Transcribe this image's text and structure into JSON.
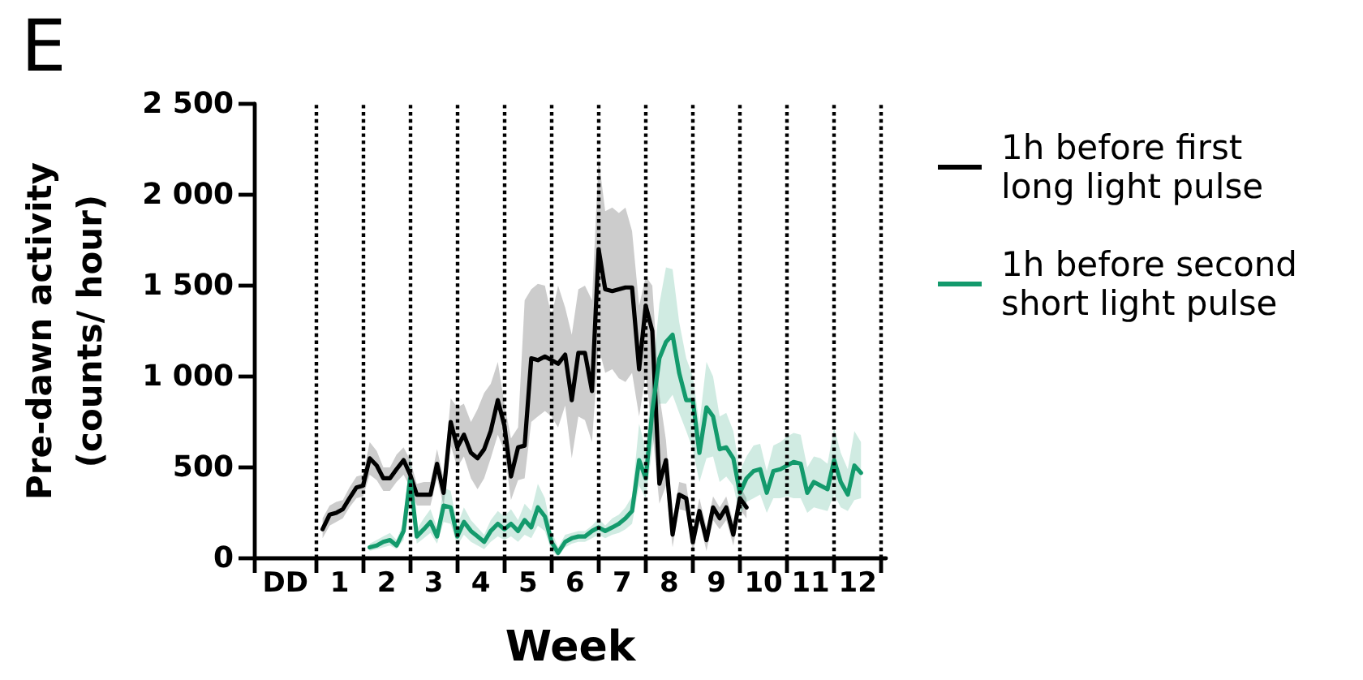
{
  "chart_data": {
    "type": "line",
    "title": "E",
    "xlabel": "Week",
    "ylabel": "Pre-dawn activity\n(counts/ hour)",
    "xlim": [
      -0.8,
      12.6
    ],
    "xticks": [
      {
        "value": -0.8,
        "label": null
      },
      {
        "value": -0.15,
        "label": "DD"
      },
      {
        "value": 0.5,
        "label": null
      },
      1,
      {
        "value": 1.5,
        "label": null
      },
      2,
      {
        "value": 2.5,
        "label": null
      },
      3,
      {
        "value": 3.5,
        "label": null
      },
      4,
      {
        "value": 4.5,
        "label": null
      },
      5,
      {
        "value": 5.5,
        "label": null
      },
      6,
      {
        "value": 6.5,
        "label": null
      },
      7,
      {
        "value": 7.5,
        "label": null
      },
      8,
      {
        "value": 8.5,
        "label": null
      },
      9,
      {
        "value": 9.5,
        "label": null
      },
      10,
      {
        "value": 10.5,
        "label": null
      },
      11,
      {
        "value": 11.5,
        "label": null
      },
      12,
      {
        "value": 12.5,
        "label": null
      }
    ],
    "ylim": [
      0,
      2500
    ],
    "yticks": [
      0,
      500,
      {
        "value": 1000,
        "label": "1 000"
      },
      {
        "value": 1500,
        "label": "1 500"
      },
      {
        "value": 2000,
        "label": "2 000"
      },
      {
        "value": 2500,
        "label": "2 500"
      }
    ],
    "legend": "top right",
    "marker": "none",
    "line_style": "solid",
    "ref_lines": [
      {
        "axis": "x",
        "value": 0.5,
        "color": "#000000",
        "line_style": "dotted"
      },
      {
        "axis": "x",
        "value": 1.5,
        "color": "#000000",
        "line_style": "dotted"
      },
      {
        "axis": "x",
        "value": 2.5,
        "color": "#000000",
        "line_style": "dotted"
      },
      {
        "axis": "x",
        "value": 3.5,
        "color": "#000000",
        "line_style": "dotted"
      },
      {
        "axis": "x",
        "value": 4.5,
        "color": "#000000",
        "line_style": "dotted"
      },
      {
        "axis": "x",
        "value": 5.5,
        "color": "#000000",
        "line_style": "dotted"
      },
      {
        "axis": "x",
        "value": 6.5,
        "color": "#000000",
        "line_style": "dotted"
      },
      {
        "axis": "x",
        "value": 7.5,
        "color": "#000000",
        "line_style": "dotted"
      },
      {
        "axis": "x",
        "value": 8.5,
        "color": "#000000",
        "line_style": "dotted"
      },
      {
        "axis": "x",
        "value": 9.5,
        "color": "#000000",
        "line_style": "dotted"
      },
      {
        "axis": "x",
        "value": 10.5,
        "color": "#000000",
        "line_style": "dotted"
      },
      {
        "axis": "x",
        "value": 11.5,
        "color": "#000000",
        "line_style": "dotted"
      },
      {
        "axis": "x",
        "value": 12.5,
        "color": "#000000",
        "line_style": "dotted"
      }
    ],
    "series": [
      {
        "name": "1h before first\nlong light pulse",
        "color": "#000000",
        "x": [
          0.64,
          0.79,
          0.93,
          1.07,
          1.21,
          1.36,
          1.5,
          1.64,
          1.79,
          1.93,
          2.07,
          2.21,
          2.36,
          2.5,
          2.64,
          2.79,
          2.93,
          3.07,
          3.21,
          3.36,
          3.5,
          3.64,
          3.79,
          3.93,
          4.07,
          4.21,
          4.36,
          4.5,
          4.64,
          4.79,
          4.93,
          5.07,
          5.21,
          5.36,
          5.5,
          5.64,
          5.79,
          5.93,
          6.07,
          6.21,
          6.36,
          6.5,
          6.64,
          6.79,
          6.93,
          7.07,
          7.21,
          7.36,
          7.5,
          7.64,
          7.79,
          7.93,
          8.07,
          8.21,
          8.36,
          8.5,
          8.64,
          8.79,
          8.93,
          9.07,
          9.21,
          9.36,
          9.5,
          9.64
        ],
        "values": [
          160,
          240,
          250,
          270,
          330,
          390,
          400,
          550,
          510,
          440,
          440,
          490,
          540,
          460,
          350,
          350,
          350,
          520,
          360,
          750,
          610,
          680,
          580,
          550,
          600,
          700,
          870,
          730,
          450,
          610,
          620,
          1100,
          1090,
          1110,
          1090,
          1070,
          1120,
          870,
          1130,
          1130,
          920,
          1700,
          1480,
          1470,
          1480,
          1490,
          1490,
          1040,
          1390,
          1250,
          410,
          540,
          130,
          350,
          330,
          90,
          260,
          100,
          280,
          220,
          280,
          130,
          330,
          280
        ],
        "lower": [
          110,
          180,
          200,
          220,
          280,
          330,
          340,
          460,
          430,
          370,
          370,
          420,
          460,
          390,
          290,
          290,
          290,
          440,
          290,
          620,
          500,
          560,
          440,
          380,
          440,
          550,
          680,
          590,
          320,
          430,
          440,
          750,
          780,
          810,
          780,
          720,
          840,
          550,
          780,
          760,
          640,
          1160,
          1020,
          1040,
          990,
          970,
          1020,
          780,
          1010,
          700,
          300,
          400,
          60,
          270,
          260,
          30,
          200,
          40,
          210,
          160,
          210,
          70,
          270,
          220
        ],
        "upper": [
          220,
          290,
          310,
          320,
          390,
          450,
          460,
          640,
          590,
          500,
          500,
          570,
          610,
          540,
          410,
          420,
          420,
          600,
          440,
          880,
          830,
          850,
          750,
          820,
          910,
          960,
          1080,
          850,
          660,
          720,
          1420,
          1480,
          1510,
          1500,
          1330,
          1500,
          1380,
          1230,
          1480,
          1500,
          1420,
          2200,
          1910,
          1930,
          1900,
          1930,
          1800,
          1390,
          1550,
          1500,
          900,
          650,
          200,
          420,
          410,
          150,
          330,
          170,
          340,
          280,
          340,
          200,
          400,
          330
        ]
      },
      {
        "name": "1h before second\nshort light pulse",
        "color": "#139a6c",
        "x": [
          1.64,
          1.79,
          1.93,
          2.07,
          2.21,
          2.36,
          2.5,
          2.64,
          2.79,
          2.93,
          3.07,
          3.21,
          3.36,
          3.5,
          3.64,
          3.79,
          3.93,
          4.07,
          4.21,
          4.36,
          4.5,
          4.64,
          4.79,
          4.93,
          5.07,
          5.21,
          5.36,
          5.5,
          5.64,
          5.79,
          5.93,
          6.07,
          6.21,
          6.36,
          6.5,
          6.64,
          6.79,
          6.93,
          7.07,
          7.21,
          7.36,
          7.5,
          7.64,
          7.79,
          7.93,
          8.07,
          8.21,
          8.36,
          8.5,
          8.64,
          8.79,
          8.93,
          9.07,
          9.21,
          9.36,
          9.5,
          9.64,
          9.79,
          9.93,
          10.07,
          10.21,
          10.36,
          10.5,
          10.64,
          10.79,
          10.93,
          11.07,
          11.21,
          11.36,
          11.5,
          11.64,
          11.79,
          11.93,
          12.07
        ],
        "values": [
          60,
          70,
          90,
          100,
          70,
          150,
          440,
          120,
          160,
          200,
          120,
          290,
          280,
          120,
          200,
          150,
          120,
          90,
          150,
          190,
          160,
          190,
          150,
          210,
          170,
          280,
          230,
          90,
          30,
          90,
          110,
          120,
          120,
          150,
          170,
          150,
          170,
          190,
          220,
          260,
          540,
          440,
          810,
          1100,
          1190,
          1230,
          1020,
          870,
          870,
          580,
          830,
          780,
          600,
          610,
          550,
          360,
          440,
          480,
          490,
          360,
          480,
          490,
          510,
          530,
          520,
          360,
          420,
          400,
          380,
          540,
          420,
          350,
          510,
          470
        ],
        "lower": [
          40,
          50,
          60,
          70,
          50,
          100,
          330,
          80,
          110,
          140,
          80,
          200,
          190,
          70,
          130,
          90,
          70,
          50,
          90,
          120,
          100,
          120,
          90,
          130,
          110,
          180,
          150,
          40,
          10,
          60,
          80,
          90,
          90,
          110,
          130,
          110,
          130,
          140,
          160,
          190,
          400,
          330,
          600,
          850,
          850,
          900,
          800,
          700,
          600,
          420,
          550,
          560,
          420,
          450,
          400,
          230,
          310,
          330,
          350,
          250,
          330,
          330,
          340,
          330,
          330,
          250,
          280,
          270,
          260,
          350,
          280,
          260,
          320,
          330
        ],
        "upper": [
          80,
          100,
          120,
          140,
          100,
          200,
          590,
          160,
          220,
          270,
          170,
          390,
          370,
          180,
          280,
          210,
          170,
          130,
          210,
          260,
          230,
          270,
          210,
          300,
          260,
          410,
          330,
          150,
          60,
          130,
          140,
          150,
          150,
          180,
          220,
          180,
          220,
          240,
          280,
          340,
          740,
          600,
          1000,
          1400,
          1600,
          1590,
          1300,
          1100,
          1000,
          740,
          1080,
          1000,
          780,
          800,
          700,
          480,
          560,
          620,
          630,
          480,
          620,
          640,
          670,
          690,
          680,
          500,
          560,
          550,
          520,
          720,
          580,
          490,
          700,
          640
        ]
      }
    ]
  }
}
